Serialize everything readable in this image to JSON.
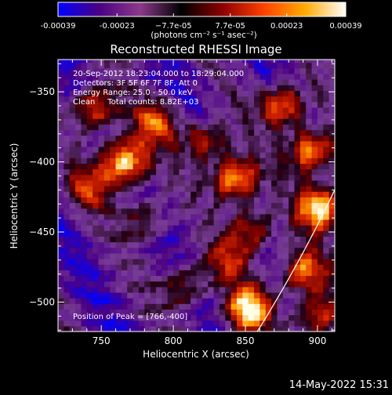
{
  "colorbar": {
    "tick_labels": [
      "-0.00039",
      "-0.00023",
      "−7.7e-05",
      "7.7e-05",
      "0.00023",
      "0.00039"
    ],
    "tick_values": [
      -0.00039,
      -0.00023,
      -7.7e-05,
      7.7e-05,
      0.00023,
      0.00039
    ],
    "range": [
      -0.00039,
      0.00039
    ],
    "units_label": "(photons cm⁻² s⁻¹ asec⁻²)",
    "colors": [
      "#0000ff",
      "#4b0082",
      "#8b3a8b",
      "#000000",
      "#8b0000",
      "#ff4000",
      "#ffaa00",
      "#ffffff"
    ]
  },
  "chart_data": {
    "type": "heatmap",
    "title": "Reconstructed RHESSI Image",
    "xlabel": "Heliocentric X (arcsec)",
    "ylabel": "Heliocentric Y (arcsec)",
    "xlim": [
      720,
      912
    ],
    "ylim": [
      -521,
      -327
    ],
    "xticks": [
      750,
      800,
      850,
      900
    ],
    "yticks": [
      -500,
      -450,
      -400,
      -350
    ],
    "xtick_labels": [
      "750",
      "800",
      "850",
      "900"
    ],
    "ytick_labels": [
      "−500",
      "−450",
      "−400",
      "−350"
    ],
    "annotations": [
      "20-Sep-2012 18:23:04.000 to 18:29:04.000",
      "Detectors: 3F 5F 6F 7F 8F, Att 0",
      "Energy Range: 25.0 - 50.0 keV",
      "Clean     Total counts: 8.82E+03"
    ],
    "peak_label": "Position of Peak = [766,-400]",
    "peak_position": [
      766,
      -400
    ],
    "limb_color": "#ffffff",
    "bright_sources": [
      {
        "x": 766,
        "y": -400,
        "strength": 1.0
      },
      {
        "x": 745,
        "y": -362,
        "strength": 0.65
      },
      {
        "x": 788,
        "y": -372,
        "strength": 0.55
      },
      {
        "x": 822,
        "y": -385,
        "strength": 0.55
      },
      {
        "x": 843,
        "y": -412,
        "strength": 0.85
      },
      {
        "x": 855,
        "y": -448,
        "strength": 0.55
      },
      {
        "x": 876,
        "y": -360,
        "strength": 0.75
      },
      {
        "x": 896,
        "y": -392,
        "strength": 0.8
      },
      {
        "x": 902,
        "y": -432,
        "strength": 0.9
      },
      {
        "x": 852,
        "y": -505,
        "strength": 0.9
      },
      {
        "x": 890,
        "y": -478,
        "strength": 0.7
      },
      {
        "x": 900,
        "y": -510,
        "strength": 0.6
      },
      {
        "x": 808,
        "y": -488,
        "strength": 0.45
      },
      {
        "x": 742,
        "y": -418,
        "strength": 0.45
      },
      {
        "x": 780,
        "y": -440,
        "strength": 0.4
      },
      {
        "x": 838,
        "y": -470,
        "strength": 0.4
      }
    ]
  },
  "timestamp": "14-May-2022 15:31"
}
